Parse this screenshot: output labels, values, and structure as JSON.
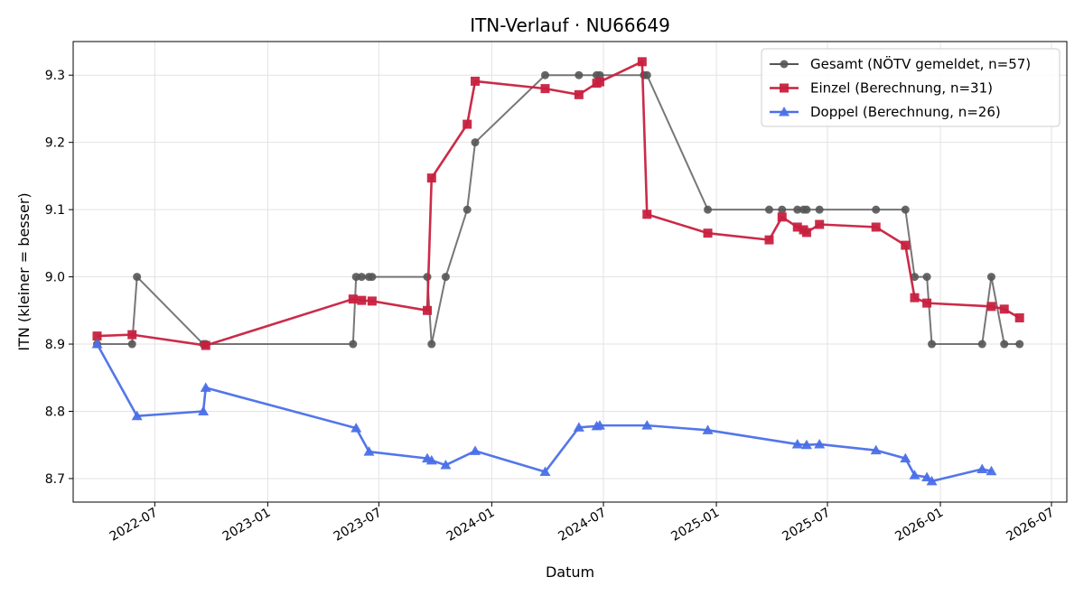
{
  "chart_data": {
    "type": "line",
    "title": "ITN-Verlauf · NU66649",
    "xlabel": "Datum",
    "ylabel": "ITN  (kleiner = besser)",
    "x_type": "date",
    "xlim": [
      "2022-02-18",
      "2026-07-26"
    ],
    "ylim": [
      8.665,
      9.35
    ],
    "x_ticks": [
      {
        "date": "2022-07-01",
        "label": "2022-07"
      },
      {
        "date": "2023-01-01",
        "label": "2023-01"
      },
      {
        "date": "2023-07-01",
        "label": "2023-07"
      },
      {
        "date": "2024-01-01",
        "label": "2024-01"
      },
      {
        "date": "2024-07-01",
        "label": "2024-07"
      },
      {
        "date": "2025-01-01",
        "label": "2025-01"
      },
      {
        "date": "2025-07-01",
        "label": "2025-07"
      },
      {
        "date": "2026-01-01",
        "label": "2026-01"
      },
      {
        "date": "2026-07-01",
        "label": "2026-07"
      }
    ],
    "y_ticks": [
      8.7,
      8.8,
      8.9,
      9.0,
      9.1,
      9.2,
      9.3
    ],
    "y_tick_labels": [
      "8.7",
      "8.8",
      "8.9",
      "9.0",
      "9.1",
      "9.2",
      "9.3"
    ],
    "grid": true,
    "legend_position": "top-right",
    "series": [
      {
        "name": "Gesamt (NÖTV gemeldet, n=57)",
        "color": "#555555",
        "marker": "circle",
        "points": [
          [
            "2022-03-29",
            8.9
          ],
          [
            "2022-05-25",
            8.9
          ],
          [
            "2022-06-02",
            9.0
          ],
          [
            "2022-09-18",
            8.9
          ],
          [
            "2022-09-22",
            8.9
          ],
          [
            "2023-05-20",
            8.9
          ],
          [
            "2023-05-25",
            9.0
          ],
          [
            "2023-06-03",
            9.0
          ],
          [
            "2023-06-15",
            9.0
          ],
          [
            "2023-06-20",
            9.0
          ],
          [
            "2023-09-18",
            9.0
          ],
          [
            "2023-09-25",
            8.9
          ],
          [
            "2023-10-18",
            9.0
          ],
          [
            "2023-11-22",
            9.1
          ],
          [
            "2023-12-05",
            9.2
          ],
          [
            "2024-03-28",
            9.3
          ],
          [
            "2024-05-22",
            9.3
          ],
          [
            "2024-06-20",
            9.3
          ],
          [
            "2024-06-25",
            9.3
          ],
          [
            "2024-09-05",
            9.3
          ],
          [
            "2024-09-10",
            9.3
          ],
          [
            "2024-12-18",
            9.1
          ],
          [
            "2025-03-28",
            9.1
          ],
          [
            "2025-04-18",
            9.1
          ],
          [
            "2025-05-13",
            9.1
          ],
          [
            "2025-05-23",
            9.1
          ],
          [
            "2025-05-28",
            9.1
          ],
          [
            "2025-06-18",
            9.1
          ],
          [
            "2025-09-18",
            9.1
          ],
          [
            "2025-11-05",
            9.1
          ],
          [
            "2025-11-20",
            9.0
          ],
          [
            "2025-12-10",
            9.0
          ],
          [
            "2025-12-18",
            8.9
          ],
          [
            "2026-03-10",
            8.9
          ],
          [
            "2026-03-25",
            9.0
          ],
          [
            "2026-04-15",
            8.9
          ],
          [
            "2026-05-10",
            8.9
          ]
        ]
      },
      {
        "name": "Einzel (Berechnung, n=31)",
        "color": "#c8203f",
        "marker": "square",
        "points": [
          [
            "2022-03-29",
            8.912
          ],
          [
            "2022-05-25",
            8.914
          ],
          [
            "2022-09-22",
            8.898
          ],
          [
            "2023-05-20",
            8.967
          ],
          [
            "2023-06-03",
            8.965
          ],
          [
            "2023-06-20",
            8.964
          ],
          [
            "2023-09-18",
            8.95
          ],
          [
            "2023-09-25",
            9.147
          ],
          [
            "2023-11-22",
            9.227
          ],
          [
            "2023-12-05",
            9.291
          ],
          [
            "2024-03-28",
            9.28
          ],
          [
            "2024-05-22",
            9.271
          ],
          [
            "2024-06-20",
            9.288
          ],
          [
            "2024-06-25",
            9.29
          ],
          [
            "2024-09-02",
            9.32
          ],
          [
            "2024-09-10",
            9.093
          ],
          [
            "2024-12-18",
            9.065
          ],
          [
            "2025-03-28",
            9.055
          ],
          [
            "2025-04-18",
            9.089
          ],
          [
            "2025-05-13",
            9.074
          ],
          [
            "2025-05-23",
            9.07
          ],
          [
            "2025-05-28",
            9.066
          ],
          [
            "2025-06-18",
            9.078
          ],
          [
            "2025-09-18",
            9.074
          ],
          [
            "2025-11-05",
            9.047
          ],
          [
            "2025-11-20",
            8.969
          ],
          [
            "2025-12-10",
            8.961
          ],
          [
            "2026-03-25",
            8.956
          ],
          [
            "2026-04-15",
            8.952
          ],
          [
            "2026-05-10",
            8.939
          ]
        ]
      },
      {
        "name": "Doppel (Berechnung, n=26)",
        "color": "#4a6fe8",
        "marker": "triangle",
        "points": [
          [
            "2022-03-29",
            8.9
          ],
          [
            "2022-06-02",
            8.793
          ],
          [
            "2022-09-18",
            8.8
          ],
          [
            "2022-09-22",
            8.835
          ],
          [
            "2023-05-25",
            8.775
          ],
          [
            "2023-06-15",
            8.74
          ],
          [
            "2023-09-18",
            8.73
          ],
          [
            "2023-09-25",
            8.727
          ],
          [
            "2023-10-18",
            8.72
          ],
          [
            "2023-12-05",
            8.741
          ],
          [
            "2024-03-28",
            8.71
          ],
          [
            "2024-05-22",
            8.776
          ],
          [
            "2024-06-20",
            8.778
          ],
          [
            "2024-06-25",
            8.779
          ],
          [
            "2024-09-10",
            8.779
          ],
          [
            "2024-12-18",
            8.772
          ],
          [
            "2025-05-13",
            8.751
          ],
          [
            "2025-05-28",
            8.75
          ],
          [
            "2025-06-18",
            8.751
          ],
          [
            "2025-09-18",
            8.742
          ],
          [
            "2025-11-05",
            8.73
          ],
          [
            "2025-11-20",
            8.705
          ],
          [
            "2025-12-10",
            8.702
          ],
          [
            "2025-12-18",
            8.696
          ],
          [
            "2026-03-10",
            8.714
          ],
          [
            "2026-03-25",
            8.711
          ]
        ]
      }
    ]
  }
}
